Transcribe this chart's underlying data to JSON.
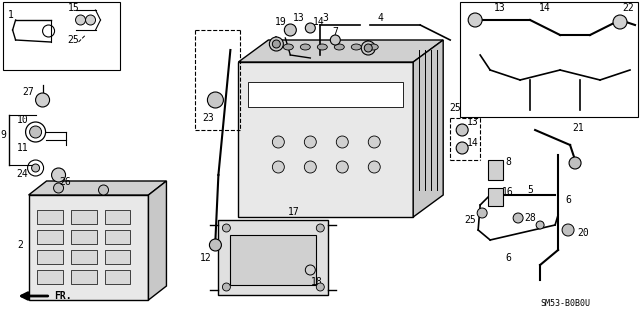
{
  "bg_color": "#ffffff",
  "line_color": "#000000",
  "fig_width": 6.4,
  "fig_height": 3.19,
  "dpi": 100,
  "watermark": "SM53-B0B0U",
  "fr_label": "FR.",
  "part_numbers": [
    1,
    2,
    3,
    4,
    5,
    6,
    7,
    8,
    9,
    10,
    11,
    12,
    13,
    14,
    15,
    16,
    17,
    18,
    19,
    20,
    21,
    22,
    23,
    24,
    25,
    26,
    27,
    28
  ]
}
